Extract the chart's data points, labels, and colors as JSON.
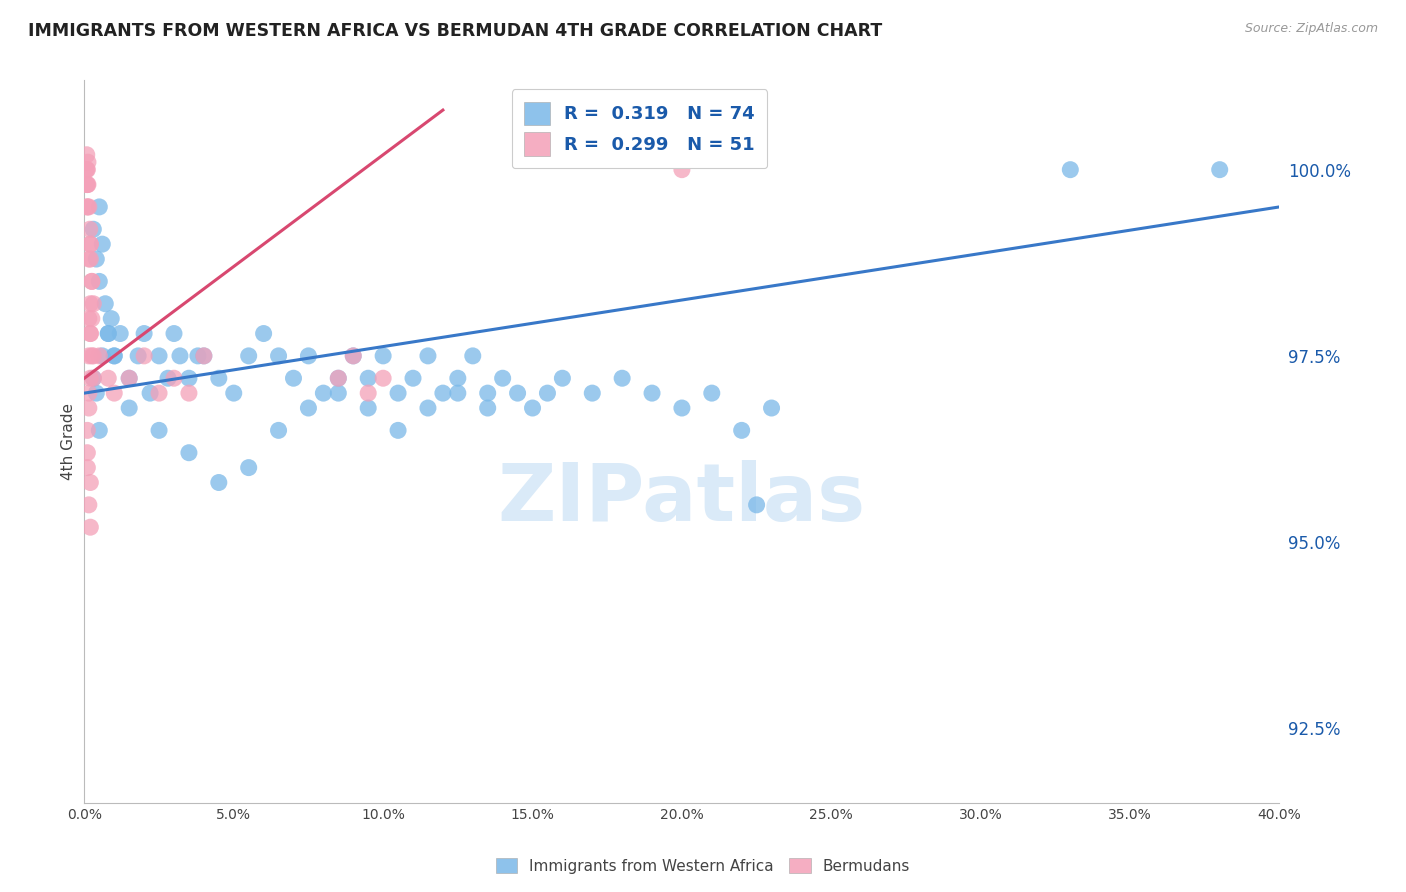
{
  "title": "IMMIGRANTS FROM WESTERN AFRICA VS BERMUDAN 4TH GRADE CORRELATION CHART",
  "source": "Source: ZipAtlas.com",
  "ylabel": "4th Grade",
  "yaxis_values": [
    92.5,
    95.0,
    97.5,
    100.0
  ],
  "xaxis_ticks": [
    0.0,
    5.0,
    10.0,
    15.0,
    20.0,
    25.0,
    30.0,
    35.0,
    40.0
  ],
  "xlim": [
    0.0,
    40.0
  ],
  "ylim": [
    91.5,
    101.2
  ],
  "blue_R": 0.319,
  "blue_N": 74,
  "pink_R": 0.299,
  "pink_N": 51,
  "blue_color": "#7ab8e8",
  "pink_color": "#f4a0b8",
  "blue_line_color": "#3878c8",
  "pink_line_color": "#d84870",
  "legend_text_color": "#1a5aaa",
  "watermark": "ZIPatlas",
  "watermark_color": "#daeaf8",
  "blue_scatter_x": [
    0.3,
    0.5,
    0.4,
    0.6,
    0.5,
    0.7,
    0.8,
    0.9,
    1.0,
    1.2,
    1.5,
    1.8,
    2.0,
    2.2,
    2.5,
    2.8,
    3.0,
    3.2,
    3.5,
    3.8,
    4.0,
    4.5,
    5.0,
    5.5,
    6.0,
    6.5,
    7.0,
    7.5,
    8.0,
    8.5,
    9.0,
    9.5,
    10.0,
    10.5,
    11.0,
    11.5,
    12.0,
    12.5,
    13.0,
    13.5,
    14.0,
    14.5,
    15.0,
    15.5,
    16.0,
    17.0,
    18.0,
    19.0,
    20.0,
    21.0,
    22.0,
    23.0,
    6.5,
    7.5,
    8.5,
    9.5,
    10.5,
    11.5,
    12.5,
    13.5,
    4.5,
    5.5,
    3.5,
    2.5,
    1.5,
    0.5,
    0.4,
    0.3,
    0.6,
    0.8,
    33.0,
    38.0,
    22.5,
    1.0
  ],
  "blue_scatter_y": [
    99.2,
    99.5,
    98.8,
    99.0,
    98.5,
    98.2,
    97.8,
    98.0,
    97.5,
    97.8,
    97.2,
    97.5,
    97.8,
    97.0,
    97.5,
    97.2,
    97.8,
    97.5,
    97.2,
    97.5,
    97.5,
    97.2,
    97.0,
    97.5,
    97.8,
    97.5,
    97.2,
    97.5,
    97.0,
    97.2,
    97.5,
    97.2,
    97.5,
    97.0,
    97.2,
    97.5,
    97.0,
    97.2,
    97.5,
    97.0,
    97.2,
    97.0,
    96.8,
    97.0,
    97.2,
    97.0,
    97.2,
    97.0,
    96.8,
    97.0,
    96.5,
    96.8,
    96.5,
    96.8,
    97.0,
    96.8,
    96.5,
    96.8,
    97.0,
    96.8,
    95.8,
    96.0,
    96.2,
    96.5,
    96.8,
    96.5,
    97.0,
    97.2,
    97.5,
    97.8,
    100.0,
    100.0,
    95.5,
    97.5
  ],
  "pink_scatter_x": [
    0.05,
    0.08,
    0.1,
    0.12,
    0.08,
    0.1,
    0.12,
    0.1,
    0.08,
    0.1,
    0.15,
    0.18,
    0.2,
    0.15,
    0.2,
    0.25,
    0.2,
    0.25,
    0.3,
    0.2,
    0.15,
    0.2,
    0.25,
    0.15,
    0.2,
    0.3,
    0.2,
    0.25,
    0.15,
    0.3,
    0.5,
    0.8,
    1.0,
    1.5,
    2.0,
    2.5,
    3.0,
    3.5,
    4.0,
    8.5,
    9.0,
    9.5,
    10.0,
    0.1,
    0.15,
    0.1,
    0.2,
    0.1,
    0.15,
    0.2,
    20.0
  ],
  "pink_scatter_y": [
    100.0,
    100.2,
    100.0,
    100.1,
    99.8,
    99.5,
    99.8,
    99.5,
    100.0,
    99.8,
    99.5,
    99.2,
    99.0,
    98.8,
    99.0,
    98.5,
    98.2,
    98.5,
    98.2,
    98.8,
    98.0,
    97.8,
    98.0,
    97.5,
    97.8,
    97.5,
    97.2,
    97.5,
    97.0,
    97.2,
    97.5,
    97.2,
    97.0,
    97.2,
    97.5,
    97.0,
    97.2,
    97.0,
    97.5,
    97.2,
    97.5,
    97.0,
    97.2,
    96.5,
    96.8,
    96.2,
    95.8,
    96.0,
    95.5,
    95.2,
    100.0
  ],
  "blue_line_x0": 0.0,
  "blue_line_x1": 40.0,
  "blue_line_y0": 97.0,
  "blue_line_y1": 99.5,
  "pink_line_x0": 0.0,
  "pink_line_x1": 12.0,
  "pink_line_y0": 97.2,
  "pink_line_y1": 100.8
}
